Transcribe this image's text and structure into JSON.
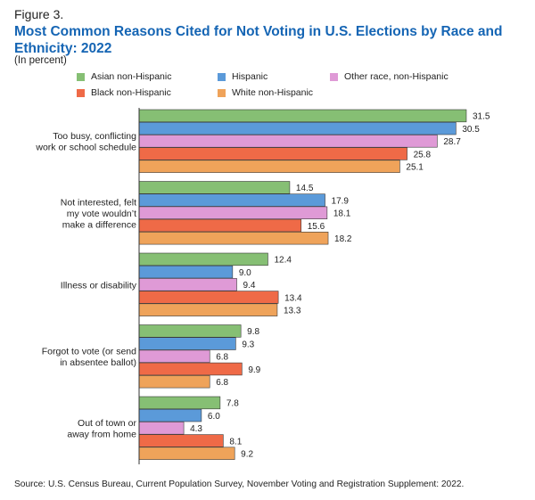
{
  "figure_label": "Figure 3.",
  "title": "Most Common Reasons Cited for Not Voting in U.S. Elections by Race and Ethnicity: 2022",
  "subtitle": "(In percent)",
  "source": "Source: U.S. Census Bureau, Current Population Survey, November Voting and Registration Supplement: 2022.",
  "colors": {
    "asian": "#86bf74",
    "hispanic": "#5b9ad9",
    "other": "#df9ad6",
    "black": "#ef6a47",
    "white": "#efa35a"
  },
  "chart_data": {
    "type": "bar",
    "orientation": "horizontal",
    "legend_placement": "top",
    "grid": false,
    "xlim": [
      0,
      35
    ],
    "categories": [
      [
        "Too busy, conflicting",
        "work or school schedule"
      ],
      [
        "Not interested, felt",
        "my vote wouldn’t",
        "make a difference"
      ],
      [
        "Illness or disability"
      ],
      [
        "Forgot to vote (or send",
        "in absentee ballot)"
      ],
      [
        "Out of town or",
        "away from home"
      ]
    ],
    "series": [
      {
        "name": "Asian non-Hispanic",
        "color_key": "asian",
        "values": [
          31.5,
          14.5,
          12.4,
          9.8,
          7.8
        ]
      },
      {
        "name": "Hispanic",
        "color_key": "hispanic",
        "values": [
          30.5,
          17.9,
          9.0,
          9.3,
          6.0
        ]
      },
      {
        "name": "Other race, non-Hispanic",
        "color_key": "other",
        "values": [
          28.7,
          18.1,
          9.4,
          6.8,
          4.3
        ]
      },
      {
        "name": "Black non-Hispanic",
        "color_key": "black",
        "values": [
          25.8,
          15.6,
          13.4,
          9.9,
          8.1
        ]
      },
      {
        "name": "White non-Hispanic",
        "color_key": "white",
        "values": [
          25.1,
          18.2,
          13.3,
          6.8,
          9.2
        ]
      }
    ]
  }
}
